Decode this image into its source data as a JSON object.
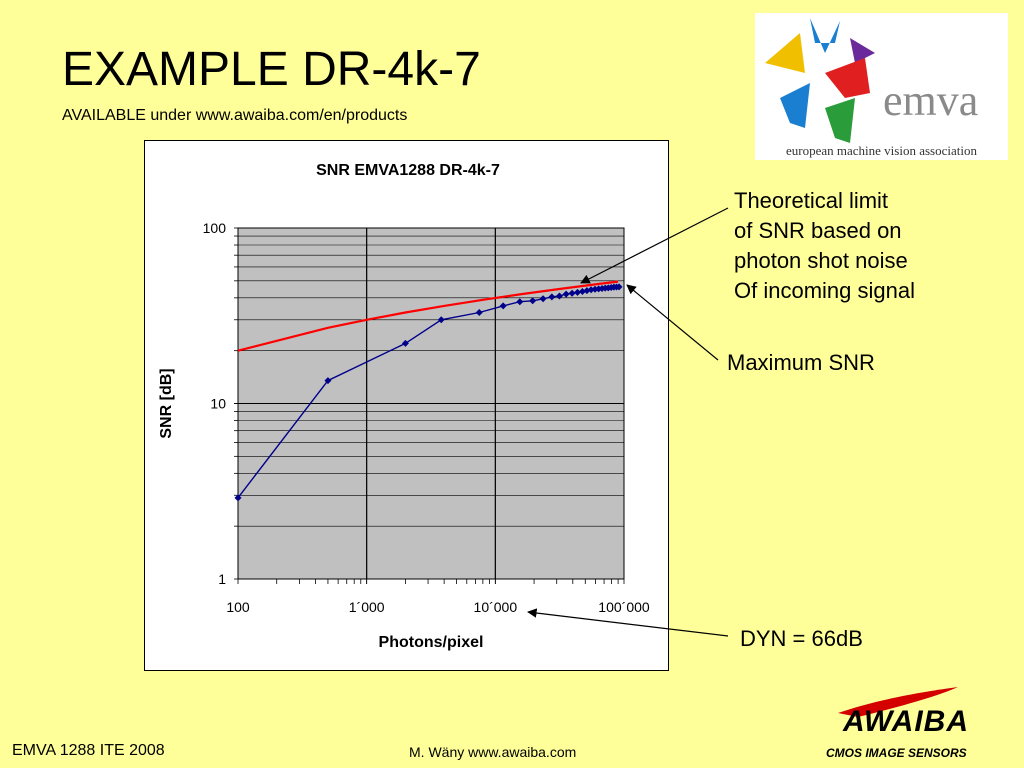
{
  "slide": {
    "title": "EXAMPLE DR-4k-7",
    "subtitle": "AVAILABLE under www.awaiba.com/en/products",
    "footer_left": "EMVA 1288 ITE 2008",
    "footer_center": "M. Wäny www.awaiba.com"
  },
  "logos": {
    "emva_word": "emva",
    "emva_tagline": "european machine vision association",
    "awaiba_word": "AWAIBA",
    "awaiba_sub": "CMOS IMAGE SENSORS",
    "colors": {
      "emva_yellow": "#f0c000",
      "emva_blue": "#1a7fd0",
      "emva_red": "#e02020",
      "emva_green": "#2a9d3a",
      "emva_violet": "#6b2a9b",
      "awaiba_red": "#d40000"
    }
  },
  "annotations": {
    "theory_lines": [
      "Theoretical limit",
      "of SNR based on",
      "photon shot noise",
      "Of incoming signal"
    ],
    "max_snr": "Maximum SNR",
    "dyn": "DYN = 66dB"
  },
  "chart_data": {
    "type": "line",
    "title": "SNR EMVA1288 DR-4k-7",
    "xlabel": "Photons/pixel",
    "ylabel": "SNR [dB]",
    "x_scale": "log",
    "y_scale": "log",
    "xlim": [
      100,
      100000
    ],
    "ylim": [
      1,
      100
    ],
    "x_tick_labels": [
      "100",
      "1´000",
      "10´000",
      "100´000"
    ],
    "y_tick_labels": [
      "1",
      "10",
      "100"
    ],
    "grid": true,
    "plot_background": "#c0c0c0",
    "series": [
      {
        "color": "#ff0000",
        "marker": "none",
        "x": [
          100,
          500,
          1000,
          2000,
          4000,
          8000,
          16000,
          32000,
          64000,
          90000
        ],
        "y": [
          20,
          27,
          30,
          33,
          36,
          39,
          42,
          45,
          48,
          49.5
        ]
      },
      {
        "color": "#00008b",
        "marker": "diamond",
        "x": [
          100,
          500,
          2000,
          3800,
          7500,
          11500,
          15500,
          19500,
          23500,
          27500,
          31500,
          35500,
          39500,
          43500,
          47500,
          51500,
          55500,
          59500,
          63500,
          67500,
          71500,
          75500,
          79500,
          83500,
          87500,
          91500
        ],
        "y": [
          2.9,
          13.5,
          22,
          30,
          33,
          36,
          38,
          38.5,
          39.5,
          40.5,
          41,
          42,
          42.5,
          43,
          43.5,
          44,
          44.5,
          44.8,
          45,
          45.2,
          45.4,
          45.6,
          45.8,
          46,
          46.1,
          46.2
        ]
      }
    ]
  }
}
